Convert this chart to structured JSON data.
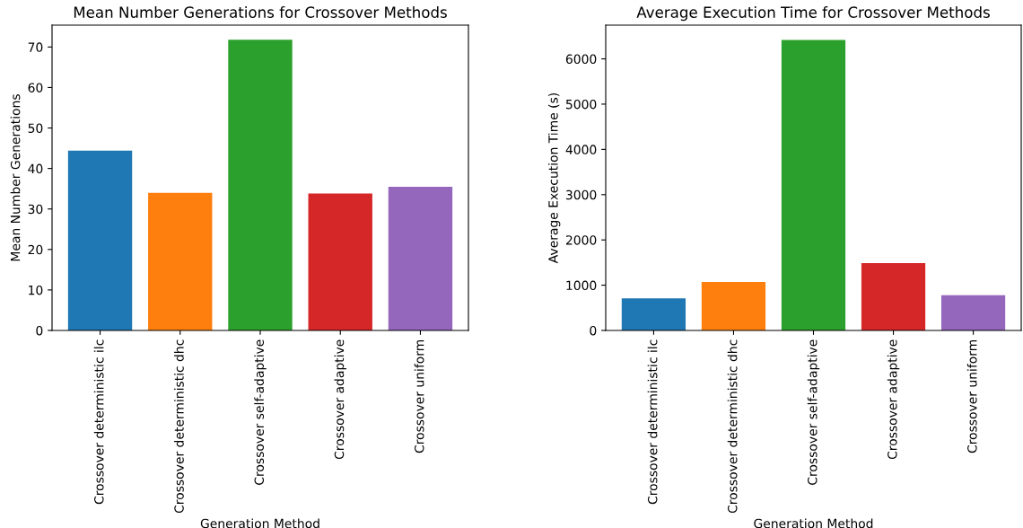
{
  "chart_data": [
    {
      "type": "bar",
      "title": "Mean Number Generations for Crossover Methods",
      "xlabel": "Generation Method",
      "ylabel": "Mean Number Generations",
      "categories": [
        "Crossover deterministic ilc",
        "Crossover deterministic dhc",
        "Crossover self-adaptive",
        "Crossover adaptive",
        "Crossover uniform"
      ],
      "values": [
        44.4,
        34.0,
        71.8,
        33.8,
        35.5
      ],
      "colors": [
        "#1f77b4",
        "#ff7f0e",
        "#2ca02c",
        "#d62728",
        "#9467bd"
      ],
      "ylim": [
        0,
        75.4
      ],
      "yticks": [
        0,
        10,
        20,
        30,
        40,
        50,
        60,
        70
      ],
      "grid": false
    },
    {
      "type": "bar",
      "title": "Average Execution Time for Crossover Methods",
      "xlabel": "Generation Method",
      "ylabel": "Average Execution Time (s)",
      "categories": [
        "Crossover deterministic ilc",
        "Crossover deterministic dhc",
        "Crossover self-adaptive",
        "Crossover adaptive",
        "Crossover uniform"
      ],
      "values": [
        710,
        1070,
        6420,
        1490,
        780
      ],
      "colors": [
        "#1f77b4",
        "#ff7f0e",
        "#2ca02c",
        "#d62728",
        "#9467bd"
      ],
      "ylim": [
        0,
        6745
      ],
      "yticks": [
        0,
        1000,
        2000,
        3000,
        4000,
        5000,
        6000
      ],
      "grid": false
    }
  ]
}
